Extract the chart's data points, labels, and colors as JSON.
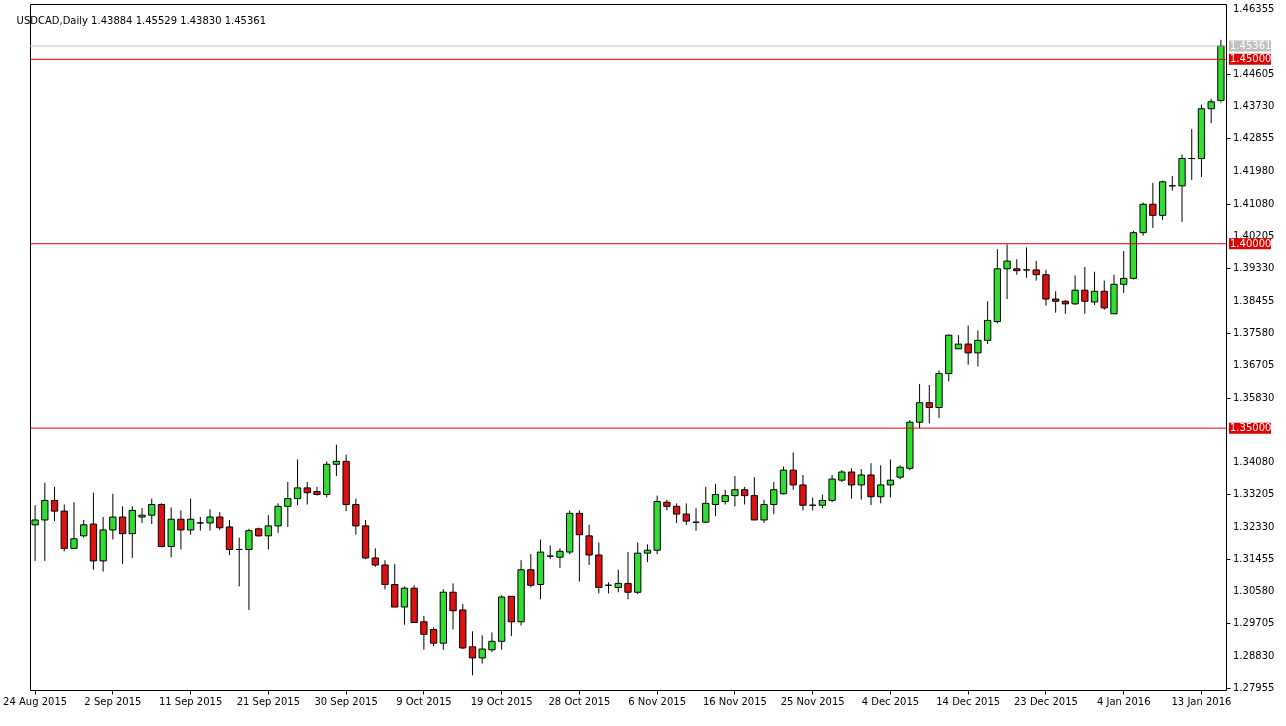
{
  "chart_data": {
    "type": "candlestick",
    "title": "USDCAD,Daily  1.43884 1.45529 1.43830 1.45361",
    "categories": [
      "24 Aug 2015",
      null,
      null,
      null,
      null,
      null,
      null,
      null,
      "2 Sep 2015",
      null,
      null,
      null,
      null,
      null,
      null,
      null,
      "11 Sep 2015",
      null,
      null,
      null,
      null,
      null,
      null,
      null,
      "21 Sep 2015",
      null,
      null,
      null,
      null,
      null,
      null,
      null,
      "30 Sep 2015",
      null,
      null,
      null,
      null,
      null,
      null,
      null,
      "9 Oct 2015",
      null,
      null,
      null,
      null,
      null,
      null,
      null,
      "19 Oct 2015",
      null,
      null,
      null,
      null,
      null,
      null,
      null,
      "28 Oct 2015",
      null,
      null,
      null,
      null,
      null,
      null,
      null,
      "6 Nov 2015",
      null,
      null,
      null,
      null,
      null,
      null,
      null,
      "16 Nov 2015",
      null,
      null,
      null,
      null,
      null,
      null,
      null,
      "25 Nov 2015",
      null,
      null,
      null,
      null,
      null,
      null,
      null,
      "4 Dec 2015",
      null,
      null,
      null,
      null,
      null,
      null,
      null,
      "14 Dec 2015",
      null,
      null,
      null,
      null,
      null,
      null,
      null,
      "23 Dec 2015",
      null,
      null,
      null,
      null,
      null,
      null,
      null,
      "4 Jan 2016",
      null,
      null,
      null,
      null,
      null,
      null,
      null,
      "13 Jan 2016",
      null,
      null
    ],
    "ohlc": [
      [
        1.3238,
        1.3291,
        1.314,
        1.3251
      ],
      [
        1.3251,
        1.3352,
        1.314,
        1.3304
      ],
      [
        1.3304,
        1.3341,
        1.3248,
        1.3275
      ],
      [
        1.3275,
        1.3293,
        1.3166,
        1.3174
      ],
      [
        1.3174,
        1.3299,
        1.3174,
        1.32
      ],
      [
        1.3208,
        1.3251,
        1.3203,
        1.3238
      ],
      [
        1.324,
        1.3325,
        1.3116,
        1.314
      ],
      [
        1.314,
        1.3259,
        1.3111,
        1.3224
      ],
      [
        1.3224,
        1.3322,
        1.3198,
        1.3259
      ],
      [
        1.3259,
        1.3288,
        1.3132,
        1.3214
      ],
      [
        1.3214,
        1.3288,
        1.3148,
        1.3277
      ],
      [
        1.3259,
        1.3283,
        1.3243,
        1.3264
      ],
      [
        1.3264,
        1.3309,
        1.324,
        1.3293
      ],
      [
        1.3293,
        1.3296,
        1.3177,
        1.3179
      ],
      [
        1.3179,
        1.3285,
        1.315,
        1.3253
      ],
      [
        1.3253,
        1.3277,
        1.3171,
        1.3224
      ],
      [
        1.3224,
        1.3309,
        1.3211,
        1.3253
      ],
      [
        1.3243,
        1.3259,
        1.3222,
        1.3243
      ],
      [
        1.3243,
        1.328,
        1.3222,
        1.3259
      ],
      [
        1.3259,
        1.3272,
        1.3224,
        1.323
      ],
      [
        1.3232,
        1.3251,
        1.3156,
        1.3171
      ],
      [
        1.3171,
        1.3203,
        1.3071,
        1.3171
      ],
      [
        1.3171,
        1.3227,
        1.3007,
        1.3222
      ],
      [
        1.3227,
        1.323,
        1.3206,
        1.3208
      ],
      [
        1.3208,
        1.3264,
        1.3171,
        1.3235
      ],
      [
        1.3235,
        1.3296,
        1.3216,
        1.3288
      ],
      [
        1.3288,
        1.3354,
        1.3232,
        1.3309
      ],
      [
        1.3309,
        1.3415,
        1.3291,
        1.3338
      ],
      [
        1.3338,
        1.3354,
        1.3293,
        1.3325
      ],
      [
        1.3328,
        1.3341,
        1.3317,
        1.332
      ],
      [
        1.332,
        1.341,
        1.3312,
        1.3402
      ],
      [
        1.3402,
        1.3455,
        1.337,
        1.341
      ],
      [
        1.341,
        1.3428,
        1.3275,
        1.3293
      ],
      [
        1.3293,
        1.3309,
        1.3211,
        1.3235
      ],
      [
        1.3235,
        1.3251,
        1.3145,
        1.3148
      ],
      [
        1.3148,
        1.3174,
        1.3124,
        1.3129
      ],
      [
        1.3129,
        1.3142,
        1.3063,
        1.3076
      ],
      [
        1.3076,
        1.3132,
        1.3015,
        1.3015
      ],
      [
        1.3015,
        1.3071,
        1.2967,
        1.3066
      ],
      [
        1.3066,
        1.3074,
        1.2973,
        1.2973
      ],
      [
        1.2975,
        1.2991,
        1.2899,
        1.2941
      ],
      [
        1.2954,
        1.296,
        1.2909,
        1.2917
      ],
      [
        1.2917,
        1.3063,
        1.2899,
        1.3055
      ],
      [
        1.3055,
        1.3079,
        1.2954,
        1.3005
      ],
      [
        1.3007,
        1.3023,
        1.2901,
        1.2904
      ],
      [
        1.2907,
        1.2949,
        1.283,
        1.2877
      ],
      [
        1.2877,
        1.2938,
        1.2862,
        1.2901
      ],
      [
        1.2899,
        1.2946,
        1.2893,
        1.2922
      ],
      [
        1.2922,
        1.3047,
        1.2899,
        1.3042
      ],
      [
        1.3044,
        1.3044,
        1.2936,
        1.2975
      ],
      [
        1.2975,
        1.3142,
        1.2965,
        1.3116
      ],
      [
        1.3116,
        1.3158,
        1.3068,
        1.3074
      ],
      [
        1.3076,
        1.3198,
        1.3036,
        1.3164
      ],
      [
        1.3153,
        1.3182,
        1.3145,
        1.3153
      ],
      [
        1.315,
        1.3174,
        1.3121,
        1.3166
      ],
      [
        1.3164,
        1.3277,
        1.3158,
        1.3269
      ],
      [
        1.3269,
        1.3277,
        1.3084,
        1.3211
      ],
      [
        1.3208,
        1.3238,
        1.3129,
        1.3156
      ],
      [
        1.3156,
        1.319,
        1.3052,
        1.3068
      ],
      [
        1.3074,
        1.3082,
        1.3052,
        1.3074
      ],
      [
        1.3068,
        1.3116,
        1.3055,
        1.3079
      ],
      [
        1.3079,
        1.3164,
        1.3036,
        1.3055
      ],
      [
        1.3055,
        1.319,
        1.305,
        1.3161
      ],
      [
        1.3161,
        1.3185,
        1.3137,
        1.3169
      ],
      [
        1.3169,
        1.3317,
        1.3158,
        1.3301
      ],
      [
        1.3299,
        1.3306,
        1.3277,
        1.3288
      ],
      [
        1.3288,
        1.3296,
        1.3243,
        1.3267
      ],
      [
        1.3267,
        1.3296,
        1.3238,
        1.3248
      ],
      [
        1.3245,
        1.3283,
        1.3222,
        1.3245
      ],
      [
        1.3245,
        1.3341,
        1.3243,
        1.3296
      ],
      [
        1.3293,
        1.3349,
        1.3261,
        1.332
      ],
      [
        1.3301,
        1.3333,
        1.3293,
        1.3317
      ],
      [
        1.3317,
        1.337,
        1.3288,
        1.3333
      ],
      [
        1.3333,
        1.3341,
        1.3293,
        1.3317
      ],
      [
        1.3317,
        1.3367,
        1.3251,
        1.3251
      ],
      [
        1.3251,
        1.3306,
        1.3243,
        1.3293
      ],
      [
        1.3293,
        1.3354,
        1.3267,
        1.3333
      ],
      [
        1.3322,
        1.3396,
        1.332,
        1.3386
      ],
      [
        1.3386,
        1.3434,
        1.3333,
        1.3346
      ],
      [
        1.3346,
        1.3373,
        1.3277,
        1.3291
      ],
      [
        1.3291,
        1.3312,
        1.3277,
        1.3291
      ],
      [
        1.3291,
        1.332,
        1.3283,
        1.3304
      ],
      [
        1.3304,
        1.3373,
        1.3299,
        1.3362
      ],
      [
        1.3359,
        1.3386,
        1.3354,
        1.3381
      ],
      [
        1.3381,
        1.3391,
        1.3309,
        1.3346
      ],
      [
        1.3346,
        1.3389,
        1.3306,
        1.3373
      ],
      [
        1.3373,
        1.3405,
        1.3291,
        1.3314
      ],
      [
        1.3314,
        1.3399,
        1.3296,
        1.3346
      ],
      [
        1.3346,
        1.3415,
        1.3312,
        1.3359
      ],
      [
        1.3367,
        1.3399,
        1.3362,
        1.3394
      ],
      [
        1.3391,
        1.3522,
        1.3386,
        1.3516
      ],
      [
        1.3516,
        1.362,
        1.35,
        1.3569
      ],
      [
        1.3569,
        1.3617,
        1.3513,
        1.3556
      ],
      [
        1.3556,
        1.3656,
        1.3527,
        1.3648
      ],
      [
        1.3648,
        1.3754,
        1.3627,
        1.3752
      ],
      [
        1.3715,
        1.3752,
        1.3715,
        1.3728
      ],
      [
        1.3728,
        1.3778,
        1.3672,
        1.3704
      ],
      [
        1.3704,
        1.3765,
        1.3667,
        1.3738
      ],
      [
        1.3738,
        1.3844,
        1.3728,
        1.3792
      ],
      [
        1.3789,
        1.3985,
        1.3784,
        1.3932
      ],
      [
        1.3932,
        1.3998,
        1.385,
        1.3953
      ],
      [
        1.3932,
        1.3958,
        1.3916,
        1.3927
      ],
      [
        1.3929,
        1.399,
        1.3908,
        1.3929
      ],
      [
        1.3929,
        1.3953,
        1.39,
        1.3916
      ],
      [
        1.3916,
        1.3929,
        1.3832,
        1.385
      ],
      [
        1.385,
        1.3871,
        1.3813,
        1.3844
      ],
      [
        1.3844,
        1.3847,
        1.381,
        1.3837
      ],
      [
        1.3837,
        1.3914,
        1.3834,
        1.3874
      ],
      [
        1.3874,
        1.3937,
        1.381,
        1.3844
      ],
      [
        1.3842,
        1.3924,
        1.3834,
        1.3871
      ],
      [
        1.3871,
        1.39,
        1.3821,
        1.3826
      ],
      [
        1.381,
        1.3916,
        1.381,
        1.389
      ],
      [
        1.389,
        1.398,
        1.3866,
        1.3906
      ],
      [
        1.3906,
        1.4035,
        1.3903,
        1.403
      ],
      [
        1.403,
        1.4112,
        1.4022,
        1.4107
      ],
      [
        1.4107,
        1.4165,
        1.4043,
        1.4077
      ],
      [
        1.4077,
        1.4171,
        1.4064,
        1.4168
      ],
      [
        1.4157,
        1.4184,
        1.4144,
        1.4157
      ],
      [
        1.4157,
        1.4242,
        1.4059,
        1.4231
      ],
      [
        1.4231,
        1.4311,
        1.4173,
        1.4231
      ],
      [
        1.4231,
        1.4377,
        1.4181,
        1.4366
      ],
      [
        1.4366,
        1.4393,
        1.4327,
        1.4385
      ],
      [
        1.43884,
        1.45529,
        1.4383,
        1.45361
      ]
    ],
    "colors": [
      "#32dd32",
      "#32dd32",
      "#dd1111",
      "#dd1111",
      "#32dd32",
      "#32dd32",
      "#dd1111",
      "#32dd32",
      "#32dd32",
      "#dd1111",
      "#32dd32",
      "#32dd32",
      "#32dd32",
      "#dd1111",
      "#32dd32",
      "#dd1111",
      "#32dd32",
      "#000000",
      "#32dd32",
      "#dd1111",
      "#dd1111",
      "#000000",
      "#32dd32",
      "#dd1111",
      "#32dd32",
      "#32dd32",
      "#32dd32",
      "#32dd32",
      "#dd1111",
      "#dd1111",
      "#32dd32",
      "#32dd32",
      "#dd1111",
      "#dd1111",
      "#dd1111",
      "#dd1111",
      "#dd1111",
      "#dd1111",
      "#32dd32",
      "#dd1111",
      "#dd1111",
      "#dd1111",
      "#32dd32",
      "#dd1111",
      "#dd1111",
      "#dd1111",
      "#32dd32",
      "#32dd32",
      "#32dd32",
      "#dd1111",
      "#32dd32",
      "#dd1111",
      "#32dd32",
      "#000000",
      "#32dd32",
      "#32dd32",
      "#dd1111",
      "#dd1111",
      "#dd1111",
      "#000000",
      "#32dd32",
      "#dd1111",
      "#32dd32",
      "#32dd32",
      "#32dd32",
      "#dd1111",
      "#dd1111",
      "#dd1111",
      "#000000",
      "#32dd32",
      "#32dd32",
      "#32dd32",
      "#32dd32",
      "#dd1111",
      "#dd1111",
      "#32dd32",
      "#32dd32",
      "#32dd32",
      "#dd1111",
      "#dd1111",
      "#000000",
      "#32dd32",
      "#32dd32",
      "#32dd32",
      "#dd1111",
      "#32dd32",
      "#dd1111",
      "#32dd32",
      "#32dd32",
      "#32dd32",
      "#32dd32",
      "#32dd32",
      "#dd1111",
      "#32dd32",
      "#32dd32",
      "#32dd32",
      "#dd1111",
      "#32dd32",
      "#32dd32",
      "#32dd32",
      "#32dd32",
      "#dd1111",
      "#000000",
      "#dd1111",
      "#dd1111",
      "#dd1111",
      "#dd1111",
      "#32dd32",
      "#dd1111",
      "#32dd32",
      "#dd1111",
      "#32dd32",
      "#32dd32",
      "#32dd32",
      "#32dd32",
      "#dd1111",
      "#32dd32",
      "#000000",
      "#32dd32",
      "#000000",
      "#32dd32",
      "#32dd32",
      "#32dd32"
    ],
    "ylim": [
      1.279,
      1.465
    ],
    "yticks": [
      1.46355,
      1.44605,
      {
        "value": 1.4373,
        "label": "1.43730"
      },
      1.42855,
      {
        "value": 1.4198,
        "label": "1.41980"
      },
      {
        "value": 1.4108,
        "label": "1.41080"
      },
      1.40205,
      {
        "value": 1.3933,
        "label": "1.39330"
      },
      1.38455,
      {
        "value": 1.3758,
        "label": "1.37580"
      },
      1.36705,
      {
        "value": 1.3583,
        "label": "1.35830"
      },
      {
        "value": 1.3408,
        "label": "1.34080"
      },
      1.33205,
      {
        "value": 1.3233,
        "label": "1.32330"
      },
      1.31455,
      {
        "value": 1.3058,
        "label": "1.30580"
      },
      1.29705,
      {
        "value": 1.2883,
        "label": "1.28830"
      },
      1.27955
    ],
    "ref_lines": [
      {
        "axis": "y",
        "value": 1.45361,
        "label": "1.45361",
        "color": "#c0c0c0"
      },
      {
        "axis": "y",
        "value": 1.45,
        "label": "1.45000",
        "color": "#e00000"
      },
      {
        "axis": "y",
        "value": 1.4,
        "label": "1.40000",
        "color": "#e00000"
      },
      {
        "axis": "y",
        "value": 1.35,
        "label": "1.35000",
        "color": "#e00000"
      }
    ],
    "grid": false
  }
}
